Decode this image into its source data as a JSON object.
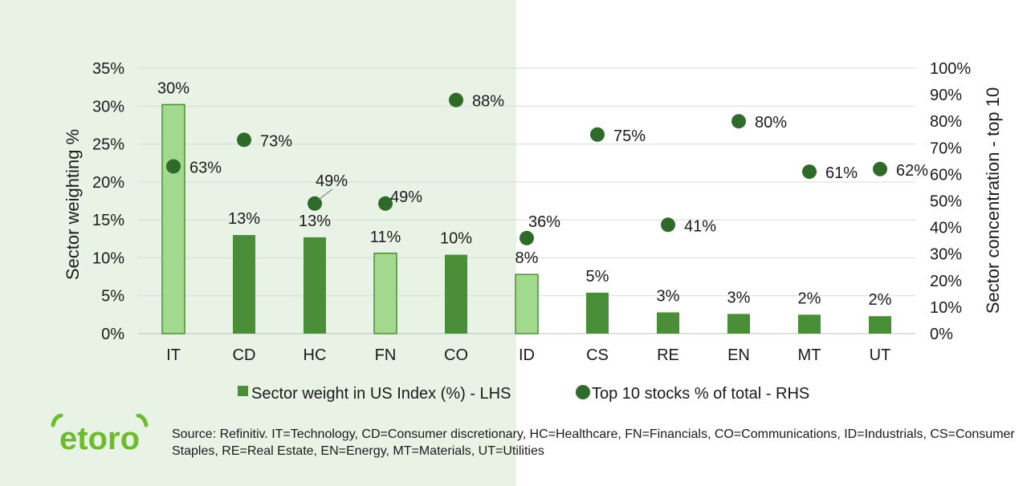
{
  "chart_data": {
    "type": "bar",
    "categories": [
      "IT",
      "CD",
      "HC",
      "FN",
      "CO",
      "ID",
      "CS",
      "RE",
      "EN",
      "MT",
      "UT"
    ],
    "series": [
      {
        "name": "Sector weight in US Index (%) - LHS",
        "type": "bar",
        "axis": "left",
        "values": [
          30.2,
          13.0,
          12.7,
          10.6,
          10.4,
          7.8,
          5.4,
          2.8,
          2.6,
          2.5,
          2.3
        ],
        "labels": [
          "30%",
          "13%",
          "13%",
          "11%",
          "10%",
          "8%",
          "5%",
          "3%",
          "3%",
          "2%",
          "2%"
        ],
        "highlight": [
          true,
          false,
          false,
          true,
          false,
          true,
          false,
          false,
          false,
          false,
          false
        ]
      },
      {
        "name": "Top 10 stocks % of total - RHS",
        "type": "scatter",
        "axis": "right",
        "values": [
          63,
          73,
          49,
          49,
          88,
          36,
          75,
          41,
          80,
          61,
          62
        ],
        "labels": [
          "63%",
          "73%",
          "49%",
          "49%",
          "88%",
          "36%",
          "75%",
          "41%",
          "80%",
          "61%",
          "62%"
        ]
      }
    ],
    "ylabel": "Sector weighting %",
    "y2label": "Sector concentration - top 10",
    "ylim": [
      0,
      35
    ],
    "y2lim": [
      0,
      100
    ],
    "yticks": [
      "0%",
      "5%",
      "10%",
      "15%",
      "20%",
      "25%",
      "30%",
      "35%"
    ],
    "y2ticks": [
      "0%",
      "10%",
      "20%",
      "30%",
      "40%",
      "50%",
      "60%",
      "70%",
      "80%",
      "90%",
      "100%"
    ],
    "grid": true,
    "legend_position": "bottom"
  },
  "colors": {
    "bar": "#4a8f38",
    "bar_highlight": "#a3d98f",
    "bar_highlight_border": "#4a8f38",
    "dot": "#2e6a2a",
    "grid": "#d9d9d9",
    "left_background": "#e8f3e6",
    "logo": "#6dbb2e"
  },
  "logo_text": "etoro",
  "source": "Source: Refinitiv. IT=Technology, CD=Consumer discretionary, HC=Healthcare, FN=Financials, CO=Communications, ID=Industrials, CS=Consumer Staples, RE=Real Estate, EN=Energy, MT=Materials, UT=Utilities"
}
